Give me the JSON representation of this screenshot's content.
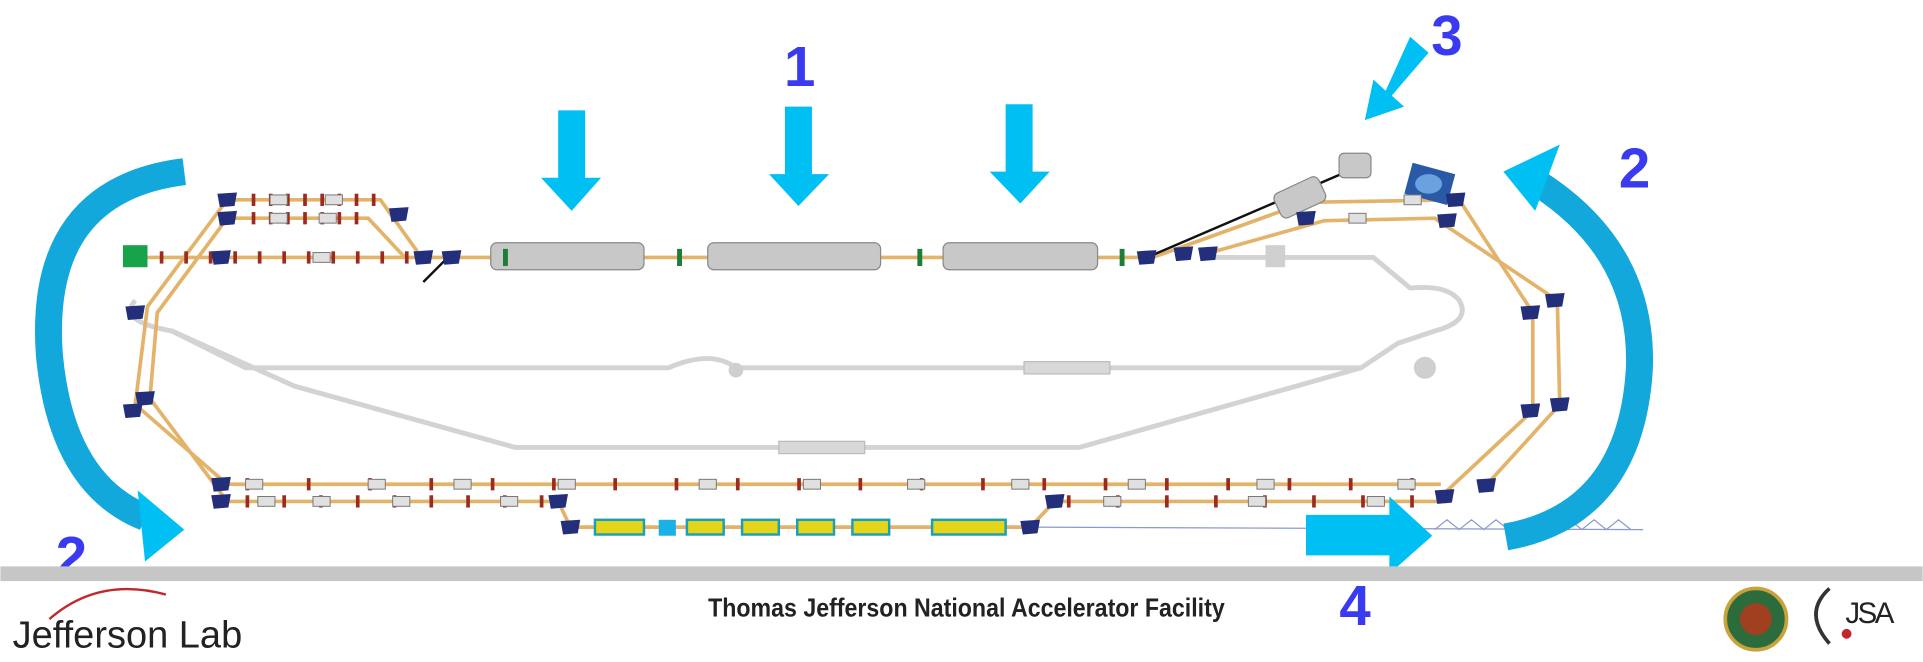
{
  "labels": {
    "linac": "1",
    "arc_left": "2",
    "arc_right": "2",
    "injector": "3",
    "extraction": "4"
  },
  "footer": {
    "title": "Thomas Jefferson National Accelerator Facility",
    "logo_left": "Jefferson Lab",
    "logo_right": "JSA"
  }
}
